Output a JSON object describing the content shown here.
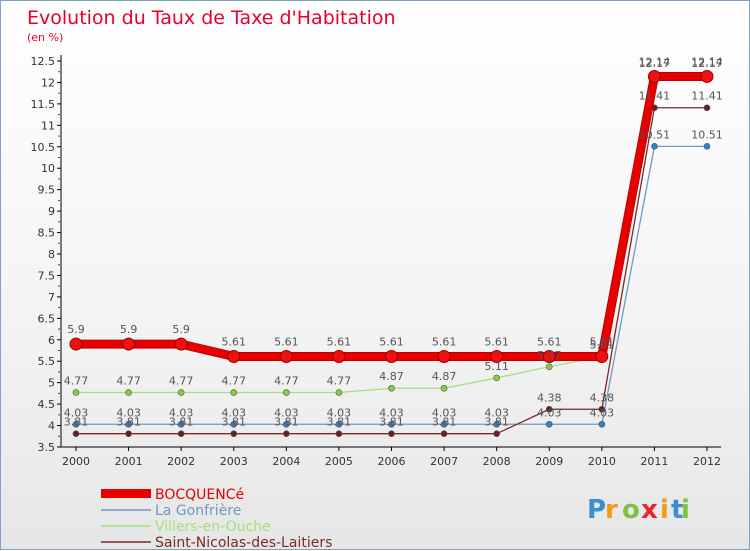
{
  "chart_data": {
    "type": "line",
    "title": "Evolution du Taux de Taxe d'Habitation",
    "unit": "(en %)",
    "x": [
      "2000",
      "2001",
      "2002",
      "2003",
      "2004",
      "2005",
      "2006",
      "2007",
      "2008",
      "2009",
      "2010",
      "2011",
      "2012"
    ],
    "ylim": [
      3.5,
      12.5
    ],
    "yticks": [
      "3.5",
      "4",
      "4.5",
      "5",
      "5.5",
      "6",
      "6.5",
      "7",
      "7.5",
      "8",
      "8.5",
      "9",
      "9.5",
      "10",
      "10.5",
      "11",
      "11.5",
      "12",
      "12.5"
    ],
    "grid": false,
    "legend_position": "bottom-left",
    "series": [
      {
        "name": "BOCQUENCé",
        "color": "#e60000",
        "marker_color": "#ee1111",
        "style": "thick",
        "values": [
          5.9,
          5.9,
          5.9,
          5.61,
          5.61,
          5.61,
          5.61,
          5.61,
          5.61,
          5.61,
          5.61,
          12.14,
          12.14
        ],
        "labels": [
          "5.9",
          "5.9",
          "5.9",
          "5.61",
          "5.61",
          "5.61",
          "5.61",
          "5.61",
          "5.61",
          "5.61",
          "5.61",
          "12.14",
          "12.14"
        ]
      },
      {
        "name": "La Gonfrière",
        "color": "#6e9ac4",
        "marker_color": "#2f7fc9",
        "style": "thin",
        "values": [
          4.03,
          4.03,
          4.03,
          4.03,
          4.03,
          4.03,
          4.03,
          4.03,
          4.03,
          4.03,
          4.03,
          10.51,
          10.51
        ],
        "labels": [
          "4.03",
          "4.03",
          "4.03",
          "4.03",
          "4.03",
          "4.03",
          "4.03",
          "4.03",
          "4.03",
          "4.03",
          "4.03",
          "10.51",
          "10.51"
        ]
      },
      {
        "name": "Villers-en-Ouche",
        "color": "#a6e07e",
        "marker_color": "#7ed23a",
        "style": "thin",
        "values": [
          4.77,
          4.77,
          4.77,
          4.77,
          4.77,
          4.77,
          4.87,
          4.87,
          5.11,
          5.37,
          5.61,
          12.17,
          12.17
        ],
        "labels": [
          "4.77",
          "4.77",
          "4.77",
          "4.77",
          "4.77",
          "4.77",
          "4.87",
          "4.87",
          "5.11",
          "5.37",
          "5.61",
          "12.17",
          "12.17"
        ]
      },
      {
        "name": "Saint-Nicolas-des-Laitiers",
        "color": "#7a2a2a",
        "marker_color": "#6a1f1f",
        "style": "thin",
        "values": [
          3.81,
          3.81,
          3.81,
          3.81,
          3.81,
          3.81,
          3.81,
          3.81,
          3.81,
          4.38,
          4.38,
          11.41,
          11.41
        ],
        "labels": [
          "3.81",
          "3.81",
          "3.81",
          "3.81",
          "3.81",
          "3.81",
          "3.81",
          "3.81",
          "3.81",
          "4.38",
          "4.38",
          "11.41",
          "11.41"
        ]
      }
    ]
  },
  "logo": {
    "letters": [
      "P",
      "r",
      "o",
      "x",
      "i",
      "t",
      "i"
    ],
    "colors": [
      "#3a8fd0",
      "#f29a16",
      "#7ec242",
      "#e8262e",
      "#f29a16",
      "#3a8fd0",
      "#7ec242"
    ]
  }
}
